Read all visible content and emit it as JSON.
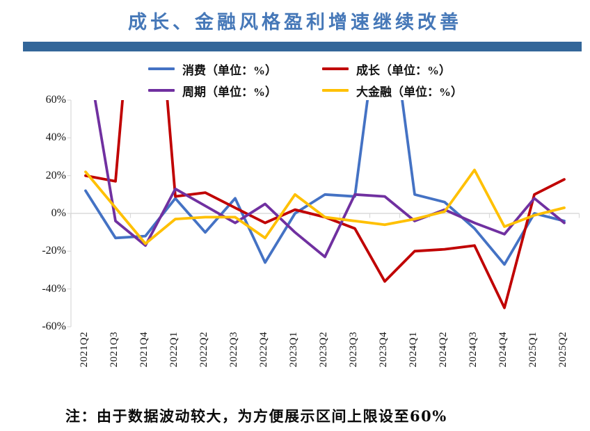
{
  "page": {
    "title": "成长、金融风格盈利增速继续改善",
    "note": "注：由于数据波动较大，为方便展示区间上限设至60%"
  },
  "colors": {
    "title": "#4678b8",
    "header_bar": "#336699",
    "axis": "#d9d9d9",
    "zero_line": "#d2d2d2"
  },
  "chart_data": {
    "type": "line",
    "title": "成长、金融风格盈利增速继续改善",
    "categories": [
      "2021Q2",
      "2021Q3",
      "2021Q4",
      "2022Q1",
      "2022Q2",
      "2022Q3",
      "2022Q4",
      "2023Q1",
      "2023Q2",
      "2023Q3",
      "2023Q4",
      "2024Q1",
      "2024Q2",
      "2024Q3",
      "2024Q4",
      "2025Q1",
      "2025Q2"
    ],
    "series": [
      {
        "name": "消费（单位：%）",
        "color": "#4472c4",
        "values": [
          12,
          -13,
          -12,
          8,
          -10,
          8,
          -26,
          0,
          10,
          9,
          130,
          10,
          6,
          -8,
          -27,
          0,
          -4
        ]
      },
      {
        "name": "成长（单位：%）",
        "color": "#c00000",
        "values": [
          20,
          17,
          200,
          9,
          11,
          3,
          -5,
          2,
          -2,
          -8,
          -36,
          -20,
          -19,
          -17,
          -50,
          10,
          18
        ]
      },
      {
        "name": "周期（单位：%）",
        "color": "#7030a0",
        "values": [
          90,
          -4,
          -17,
          13,
          4,
          -5,
          5,
          -10,
          -23,
          10,
          9,
          -4,
          2,
          -5,
          -11,
          8,
          -5
        ]
      },
      {
        "name": "大金融（单位：%）",
        "color": "#ffc000",
        "values": [
          22,
          3,
          -16,
          -3,
          -2,
          -2,
          -13,
          10,
          -2,
          -4,
          -6,
          -3,
          1,
          23,
          -7,
          -1,
          3
        ]
      }
    ],
    "ylim": [
      -60,
      60
    ],
    "yticks": [
      "60%",
      "40%",
      "20%",
      "0%",
      "-20%",
      "-40%",
      "-60%"
    ],
    "ytick_values": [
      60,
      40,
      20,
      0,
      -20,
      -40,
      -60
    ],
    "clip_top_percent": 60,
    "legend_position": "top",
    "grid": "zero-line-only"
  }
}
